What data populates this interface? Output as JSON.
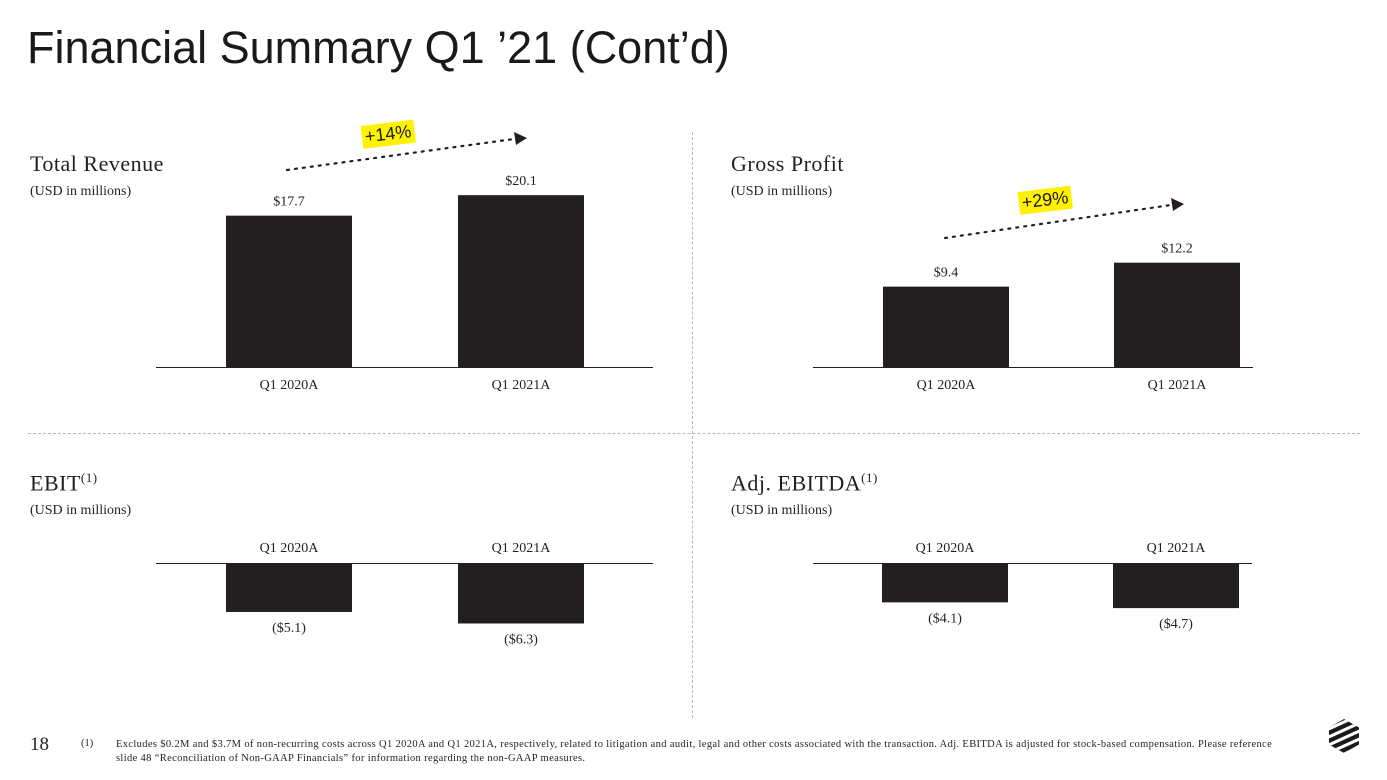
{
  "page": {
    "title": "Financial Summary Q1 ’21 (Cont’d)",
    "page_number": "18",
    "footnote_marker": "(1)",
    "footnote": "Excludes $0.2M and $3.7M of non-recurring costs across Q1 2020A and Q1 2021A, respectively, related to litigation and audit, legal and other costs associated with the transaction.  Adj. EBITDA is adjusted for stock-based compensation. Please reference slide 48 “Reconciliation of Non-GAAP Financials” for information regarding the non-GAAP measures.",
    "logo_icon": "company-logo-icon"
  },
  "colors": {
    "bar": "#231f20",
    "highlight": "#fff200",
    "divider": "#b8b8b8"
  },
  "panels": {
    "revenue": {
      "title": "Total Revenue",
      "sup": "",
      "subtitle": "(USD in millions)",
      "growth": "+14%"
    },
    "gross_profit": {
      "title": "Gross Profit",
      "sup": "",
      "subtitle": "(USD in millions)",
      "growth": "+29%"
    },
    "ebit": {
      "title": "EBIT",
      "sup": "(1)",
      "subtitle": "(USD in millions)"
    },
    "ebitda": {
      "title": "Adj. EBITDA",
      "sup": "(1)",
      "subtitle": "(USD in millions)"
    }
  },
  "chart_data": [
    {
      "type": "bar",
      "title": "Total Revenue",
      "ylabel": "(USD in millions)",
      "categories": [
        "Q1 2020A",
        "Q1 2021A"
      ],
      "values": [
        17.7,
        20.1
      ],
      "labels": [
        "$17.7",
        "$20.1"
      ],
      "annotation": "+14%"
    },
    {
      "type": "bar",
      "title": "Gross Profit",
      "ylabel": "(USD in millions)",
      "categories": [
        "Q1 2020A",
        "Q1 2021A"
      ],
      "values": [
        9.4,
        12.2
      ],
      "labels": [
        "$9.4",
        "$12.2"
      ],
      "annotation": "+29%"
    },
    {
      "type": "bar",
      "title": "EBIT",
      "ylabel": "(USD in millions)",
      "categories": [
        "Q1 2020A",
        "Q1 2021A"
      ],
      "values": [
        -5.1,
        -6.3
      ],
      "labels": [
        "($5.1)",
        "($6.3)"
      ]
    },
    {
      "type": "bar",
      "title": "Adj. EBITDA",
      "ylabel": "(USD in millions)",
      "categories": [
        "Q1 2020A",
        "Q1 2021A"
      ],
      "values": [
        -4.1,
        -4.7
      ],
      "labels": [
        "($4.1)",
        "($4.7)"
      ]
    }
  ]
}
